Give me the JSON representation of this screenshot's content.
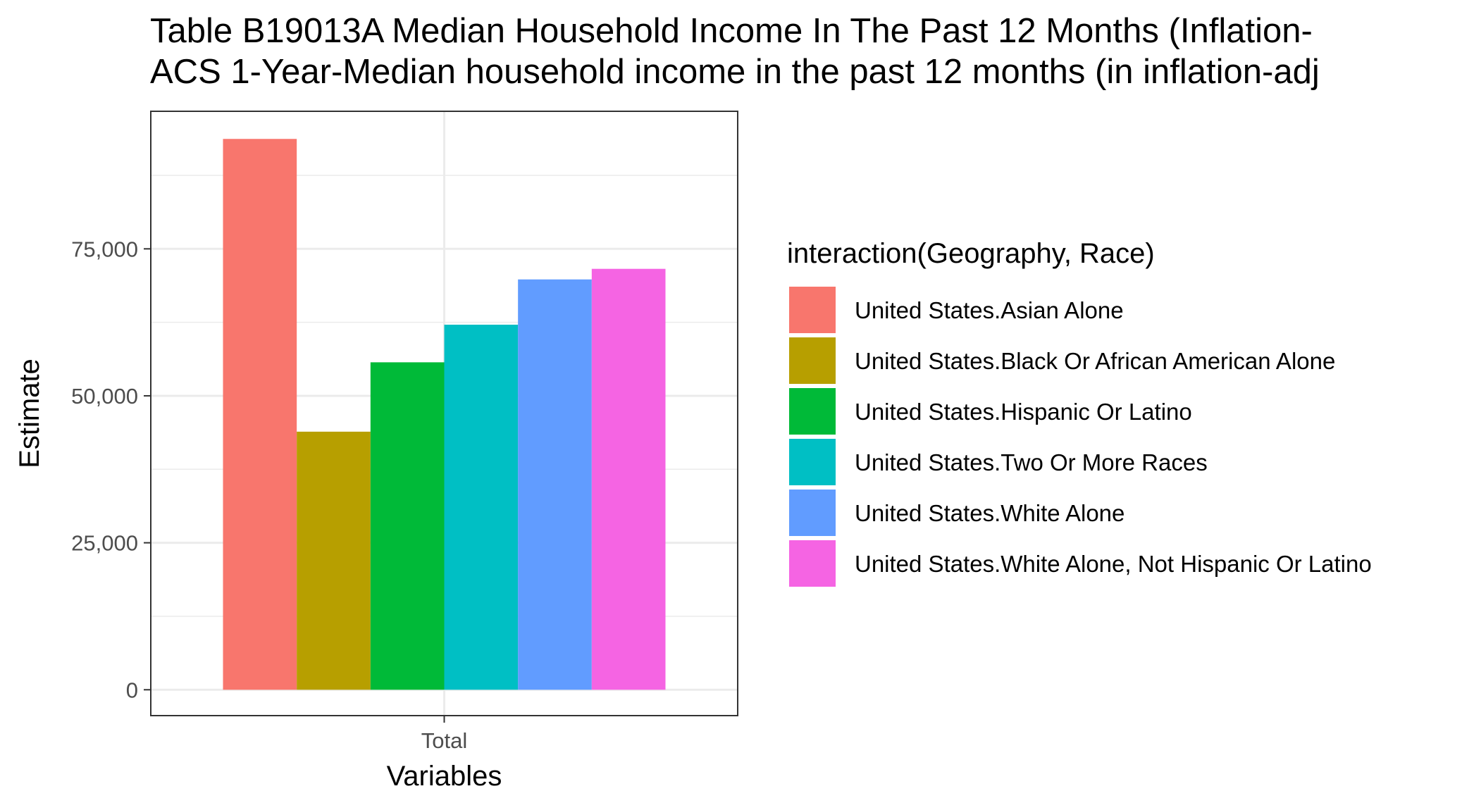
{
  "chart_data": {
    "type": "bar",
    "title_lines": [
      "Table B19013A Median Household Income In The Past 12 Months (Inflation-",
      "ACS 1-Year-Median household income in the past 12 months (in inflation-adj"
    ],
    "xlabel": "Variables",
    "ylabel": "Estimate",
    "categories": [
      "Total"
    ],
    "ylim": [
      -4400,
      98400
    ],
    "yticks": [
      0,
      25000,
      50000,
      75000
    ],
    "ytick_labels": [
      "0",
      "25,000",
      "50,000",
      "75,000"
    ],
    "grid": true,
    "legend": {
      "title": "interaction(Geography, Race)",
      "placement": "right"
    },
    "series": [
      {
        "name": "United States.Asian Alone",
        "color": "#F8766D",
        "values": [
          93700
        ]
      },
      {
        "name": "United States.Black Or African American Alone",
        "color": "#B79F00",
        "values": [
          43900
        ]
      },
      {
        "name": "United States.Hispanic Or Latino",
        "color": "#00BA38",
        "values": [
          55700
        ]
      },
      {
        "name": "United States.Two Or More Races",
        "color": "#00BFC4",
        "values": [
          62100
        ]
      },
      {
        "name": "United States.White Alone",
        "color": "#619CFF",
        "values": [
          69800
        ]
      },
      {
        "name": "United States.White Alone, Not Hispanic Or Latino",
        "color": "#F564E3",
        "values": [
          71600
        ]
      }
    ]
  }
}
